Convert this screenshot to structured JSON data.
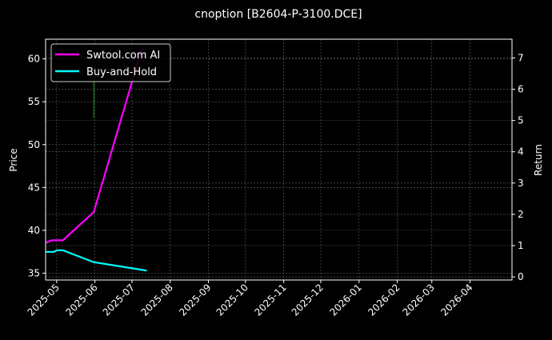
{
  "chart_data": {
    "type": "line",
    "title": "cnoption [B2604-P-3100.DCE]",
    "xlabel": "",
    "ylabel": "Price",
    "y2label": "Return",
    "xlim": [
      "2025-04-22",
      "2026-05-05"
    ],
    "ylim": [
      34.2,
      62.3
    ],
    "y2lim": [
      -0.1,
      7.6
    ],
    "x_ticks": [
      "2025-05",
      "2025-06",
      "2025-07",
      "2025-08",
      "2025-09",
      "2025-10",
      "2025-11",
      "2025-12",
      "2026-01",
      "2026-02",
      "2026-03",
      "2026-04"
    ],
    "y_ticks": [
      35,
      40,
      45,
      50,
      55,
      60
    ],
    "y2_ticks": [
      0,
      1,
      2,
      3,
      4,
      5,
      6,
      7
    ],
    "grid": true,
    "legend": "top-left",
    "series": [
      {
        "name": "Swtool.com AI",
        "axis": "right",
        "color": "#ff00ff",
        "x": [
          "2025-04-22",
          "2025-04-27",
          "2025-05-06",
          "2025-05-31",
          "2025-07-09"
        ],
        "values": [
          1.09,
          1.17,
          1.17,
          2.07,
          7.3
        ]
      },
      {
        "name": "Buy-and-Hold",
        "axis": "right",
        "color": "#00ffff",
        "x": [
          "2025-04-22",
          "2025-04-29",
          "2025-05-01",
          "2025-05-06",
          "2025-05-31",
          "2025-07-13"
        ],
        "values": [
          0.8,
          0.8,
          0.85,
          0.85,
          0.47,
          0.2
        ]
      }
    ],
    "price_bars": [
      {
        "x": "2025-05-31",
        "low": 53.1,
        "high": 58.0,
        "color": "#00aa00"
      }
    ]
  }
}
